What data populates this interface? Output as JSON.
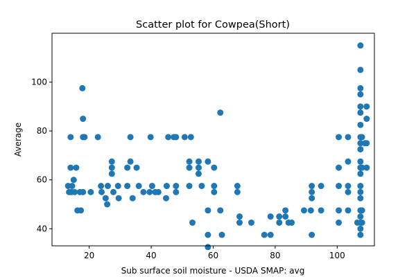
{
  "chart_data": {
    "type": "scatter",
    "title": "Scatter plot for Cowpea(Short)",
    "xlabel": "Sub surface soil moisture - USDA SMAP: avg",
    "ylabel": "Average",
    "xlim": [
      8,
      112
    ],
    "ylim": [
      33,
      120
    ],
    "xticks": [
      20,
      40,
      60,
      80,
      100
    ],
    "yticks": [
      40,
      60,
      80,
      100
    ],
    "xtick_labels": [
      "20",
      "40",
      "60",
      "80",
      "100"
    ],
    "ytick_labels": [
      "40",
      "60",
      "80",
      "100"
    ],
    "grid": false,
    "legend": "none",
    "marker_color": "#1f77b4",
    "points": [
      [
        13.2,
        57.5
      ],
      [
        13.5,
        55
      ],
      [
        14,
        65
      ],
      [
        14,
        77.5
      ],
      [
        14.3,
        55
      ],
      [
        14.5,
        57.5
      ],
      [
        15,
        60
      ],
      [
        15.3,
        55
      ],
      [
        15.8,
        65
      ],
      [
        16.2,
        47.5
      ],
      [
        17,
        55
      ],
      [
        17.3,
        47.5
      ],
      [
        17.8,
        97.5
      ],
      [
        18,
        85
      ],
      [
        18,
        77.5
      ],
      [
        18,
        55
      ],
      [
        18.5,
        77.5
      ],
      [
        20.5,
        55
      ],
      [
        22.8,
        77.5
      ],
      [
        23.8,
        57.5
      ],
      [
        24,
        55
      ],
      [
        25.3,
        52.5
      ],
      [
        25.8,
        50
      ],
      [
        26,
        57.5
      ],
      [
        27.3,
        67.5
      ],
      [
        27.3,
        65
      ],
      [
        27.3,
        62.5
      ],
      [
        27.8,
        55
      ],
      [
        29.3,
        57.5
      ],
      [
        29.5,
        52.5
      ],
      [
        32.3,
        57.5
      ],
      [
        32.3,
        65
      ],
      [
        33.3,
        67.5
      ],
      [
        33.3,
        77.5
      ],
      [
        34,
        52.5
      ],
      [
        35.3,
        65
      ],
      [
        36,
        57.5
      ],
      [
        37.5,
        55
      ],
      [
        39.5,
        55
      ],
      [
        39.8,
        77.5
      ],
      [
        40.3,
        57.5
      ],
      [
        41.3,
        55
      ],
      [
        42.3,
        55
      ],
      [
        44.8,
        52.5
      ],
      [
        45,
        57.5
      ],
      [
        45.5,
        77.5
      ],
      [
        47.3,
        77.5
      ],
      [
        48,
        77.5
      ],
      [
        48,
        57.5
      ],
      [
        48,
        55
      ],
      [
        50.8,
        77.5
      ],
      [
        52.3,
        67.5
      ],
      [
        52.3,
        65
      ],
      [
        52.3,
        57.5
      ],
      [
        52.8,
        77.5
      ],
      [
        53.3,
        42.5
      ],
      [
        55.3,
        67.5
      ],
      [
        55.3,
        65
      ],
      [
        55.3,
        62.5
      ],
      [
        56.3,
        57.5
      ],
      [
        58.3,
        67.5
      ],
      [
        58.3,
        47.5
      ],
      [
        58.3,
        37.5
      ],
      [
        58.3,
        32.5
      ],
      [
        60.3,
        65
      ],
      [
        60.3,
        57.5
      ],
      [
        60.3,
        55
      ],
      [
        62.3,
        87.5
      ],
      [
        62.3,
        47.5
      ],
      [
        62.8,
        37.5
      ],
      [
        67.8,
        57.5
      ],
      [
        67.8,
        55
      ],
      [
        68.5,
        45
      ],
      [
        68.5,
        42.5
      ],
      [
        72.3,
        42.5
      ],
      [
        76.5,
        37.5
      ],
      [
        78.5,
        45
      ],
      [
        78.5,
        37.5
      ],
      [
        81.3,
        45
      ],
      [
        81.3,
        42.5
      ],
      [
        83.3,
        47.5
      ],
      [
        83.3,
        45
      ],
      [
        84.3,
        42.5
      ],
      [
        85.3,
        42.5
      ],
      [
        89.3,
        47.5
      ],
      [
        91.5,
        47.5
      ],
      [
        91.8,
        57.5
      ],
      [
        91.8,
        55
      ],
      [
        91.8,
        52.5
      ],
      [
        91.8,
        37.5
      ],
      [
        94.8,
        57.5
      ],
      [
        94.8,
        47.5
      ],
      [
        100.5,
        77.5
      ],
      [
        100.5,
        65
      ],
      [
        100.5,
        57.5
      ],
      [
        100.5,
        47.5
      ],
      [
        100.5,
        42.5
      ],
      [
        103.5,
        77.5
      ],
      [
        103.5,
        67.5
      ],
      [
        103.5,
        57.5
      ],
      [
        103.5,
        55
      ],
      [
        103.5,
        47.5
      ],
      [
        106.5,
        42.5
      ],
      [
        107.5,
        115
      ],
      [
        107.5,
        105
      ],
      [
        107.5,
        97.5
      ],
      [
        107.5,
        95
      ],
      [
        107.5,
        90
      ],
      [
        107.5,
        87.5
      ],
      [
        107.5,
        82.5
      ],
      [
        107.5,
        77.5
      ],
      [
        107.5,
        75
      ],
      [
        107.5,
        72.5
      ],
      [
        107.5,
        67.5
      ],
      [
        107.5,
        65
      ],
      [
        107.5,
        62.5
      ],
      [
        107.5,
        57.5
      ],
      [
        107.5,
        55
      ],
      [
        107.5,
        52.5
      ],
      [
        107.5,
        47.5
      ],
      [
        107.5,
        45
      ],
      [
        107.5,
        42.5
      ],
      [
        107.5,
        40
      ],
      [
        107.5,
        37.5
      ],
      [
        108,
        77.5
      ],
      [
        108,
        65
      ],
      [
        108,
        47.5
      ],
      [
        108,
        42.5
      ],
      [
        109,
        75
      ],
      [
        109.5,
        90
      ],
      [
        109.5,
        85
      ],
      [
        109.5,
        75
      ],
      [
        109.5,
        65
      ]
    ]
  }
}
